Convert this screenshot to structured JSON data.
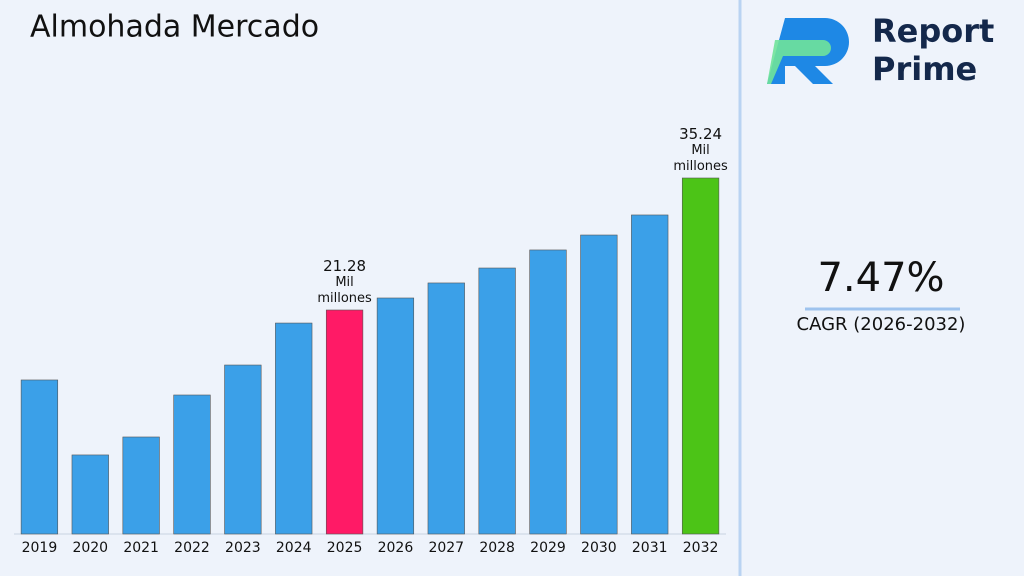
{
  "chart_data": {
    "type": "bar",
    "title": "Almohada Mercado",
    "categories": [
      "2019",
      "2020",
      "2021",
      "2022",
      "2023",
      "2024",
      "2025",
      "2026",
      "2027",
      "2028",
      "2029",
      "2030",
      "2031",
      "2032"
    ],
    "values": [
      13.88,
      5.95,
      7.85,
      12.29,
      15.46,
      19.9,
      21.28,
      22.55,
      24.14,
      25.72,
      27.63,
      29.21,
      31.33,
      35.24
    ],
    "value_labels": [
      null,
      null,
      null,
      null,
      null,
      null,
      "21.28 Mil millones",
      null,
      null,
      null,
      null,
      null,
      null,
      "35.24 Mil millones"
    ],
    "colors": [
      "#3ba0e8",
      "#3ba0e8",
      "#3ba0e8",
      "#3ba0e8",
      "#3ba0e8",
      "#3ba0e8",
      "#ff1a66",
      "#3ba0e8",
      "#3ba0e8",
      "#3ba0e8",
      "#3ba0e8",
      "#3ba0e8",
      "#3ba0e8",
      "#4cc417"
    ],
    "ylim": [
      -2.41,
      43.49
    ]
  },
  "sidebar": {
    "brand_line1": "Report",
    "brand_line2": "Prime",
    "cagr_value": "7.47%",
    "cagr_label": "CAGR (2026-2032)"
  }
}
